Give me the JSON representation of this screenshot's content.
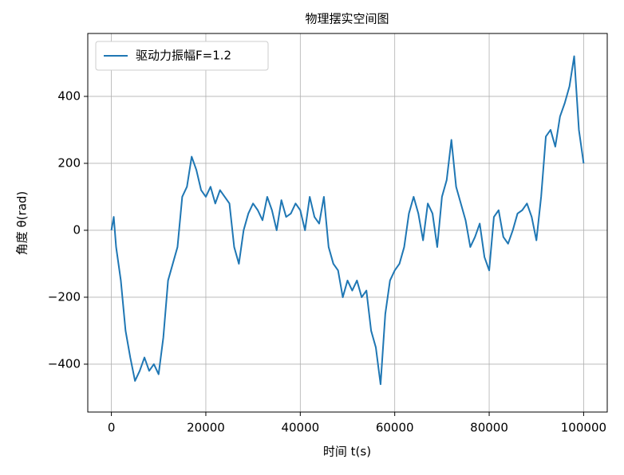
{
  "chart_data": {
    "type": "line",
    "title": "物理摆实空间图",
    "xlabel": "时间 t(s)",
    "ylabel": "角度 θ(rad)",
    "x": [
      0,
      500,
      1000,
      2000,
      3000,
      4000,
      5000,
      6000,
      7000,
      8000,
      9000,
      10000,
      11000,
      12000,
      13000,
      14000,
      15000,
      16000,
      17000,
      18000,
      19000,
      20000,
      21000,
      22000,
      23000,
      24000,
      25000,
      26000,
      27000,
      28000,
      29000,
      30000,
      31000,
      32000,
      33000,
      34000,
      35000,
      36000,
      37000,
      38000,
      39000,
      40000,
      41000,
      42000,
      43000,
      44000,
      45000,
      46000,
      47000,
      48000,
      49000,
      50000,
      51000,
      52000,
      53000,
      54000,
      55000,
      56000,
      57000,
      58000,
      59000,
      60000,
      61000,
      62000,
      63000,
      64000,
      65000,
      66000,
      67000,
      68000,
      69000,
      70000,
      71000,
      72000,
      73000,
      74000,
      75000,
      76000,
      77000,
      78000,
      79000,
      80000,
      81000,
      82000,
      83000,
      84000,
      85000,
      86000,
      87000,
      88000,
      89000,
      90000,
      91000,
      92000,
      93000,
      94000,
      95000,
      96000,
      97000,
      98000,
      99000,
      100000
    ],
    "series": [
      {
        "name": "驱动力振幅F=1.2",
        "color": "#1f77b4",
        "values": [
          0,
          40,
          -50,
          -150,
          -300,
          -380,
          -450,
          -420,
          -380,
          -420,
          -400,
          -430,
          -320,
          -150,
          -100,
          -50,
          100,
          130,
          220,
          180,
          120,
          100,
          130,
          80,
          120,
          100,
          80,
          -50,
          -100,
          0,
          50,
          80,
          60,
          30,
          100,
          60,
          0,
          90,
          40,
          50,
          80,
          60,
          0,
          100,
          40,
          20,
          100,
          -50,
          -100,
          -120,
          -200,
          -150,
          -180,
          -150,
          -200,
          -180,
          -300,
          -350,
          -460,
          -250,
          -150,
          -120,
          -100,
          -50,
          50,
          100,
          50,
          -30,
          80,
          50,
          -50,
          100,
          150,
          270,
          130,
          80,
          30,
          -50,
          -20,
          20,
          -80,
          -120,
          40,
          60,
          -20,
          -40,
          0,
          50,
          60,
          80,
          40,
          -30,
          100,
          280,
          300,
          250,
          340,
          380,
          430,
          520,
          300,
          200
        ]
      }
    ],
    "xlim": [
      -5000,
      105000
    ],
    "ylim": [
      -543,
      588
    ],
    "xticks": [
      0,
      20000,
      40000,
      60000,
      80000,
      100000
    ],
    "yticks": [
      {
        "value": -400,
        "label": "−400"
      },
      {
        "value": -200,
        "label": "−200"
      },
      0,
      200,
      400
    ],
    "grid": true,
    "legend": "upper left"
  }
}
